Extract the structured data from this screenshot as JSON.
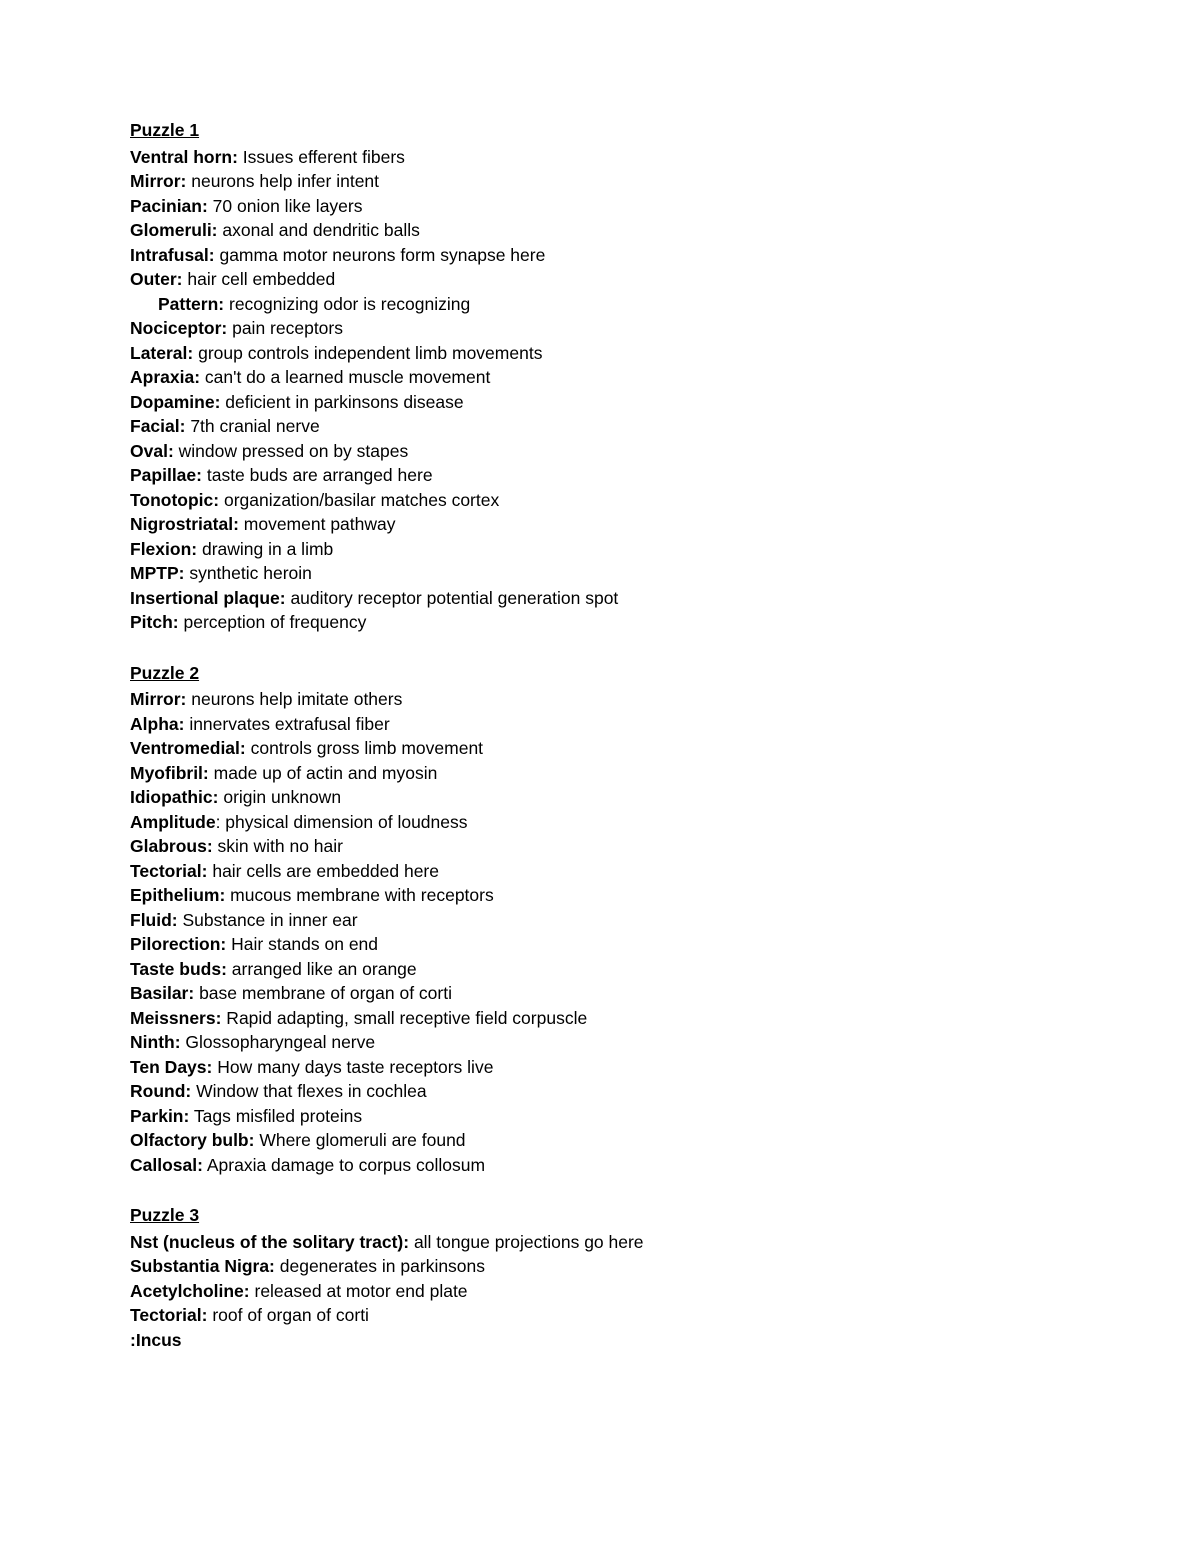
{
  "text_color": "#000000",
  "background_color": "#ffffff",
  "font_family": "Verdana, Geneva, sans-serif",
  "font_size_pt": 13,
  "puzzles": [
    {
      "heading": "Puzzle 1",
      "entries": [
        {
          "term": "Ventral horn:",
          "def": " Issues efferent fibers",
          "indent": false
        },
        {
          "term": "Mirror:",
          "def": " neurons help infer intent",
          "indent": false
        },
        {
          "term": "Pacinian:",
          "def": " 70 onion like layers",
          "indent": false
        },
        {
          "term": "Glomeruli:",
          "def": " axonal and dendritic balls",
          "indent": false
        },
        {
          "term": "Intrafusal:",
          "def": " gamma motor neurons form synapse here",
          "indent": false
        },
        {
          "term": "Outer:",
          "def": " hair cell embedded",
          "indent": false
        },
        {
          "term": "Pattern:",
          "def": " recognizing odor is recognizing",
          "indent": true
        },
        {
          "term": "Nociceptor:",
          "def": " pain receptors",
          "indent": false
        },
        {
          "term": "Lateral:",
          "def": " group controls independent limb movements",
          "indent": false
        },
        {
          "term": "Apraxia:",
          "def": " can't do a learned muscle movement",
          "indent": false
        },
        {
          "term": "Dopamine:",
          "def": " deficient in parkinsons disease",
          "indent": false
        },
        {
          "term": "Facial:",
          "def": " 7th cranial nerve",
          "indent": false
        },
        {
          "term": "Oval:",
          "def": " window pressed on by stapes",
          "indent": false
        },
        {
          "term": "Papillae:",
          "def": " taste buds are arranged here",
          "indent": false
        },
        {
          "term": "Tonotopic:",
          "def": " organization/basilar matches cortex",
          "indent": false
        },
        {
          "term": "Nigrostriatal:",
          "def": " movement pathway",
          "indent": false
        },
        {
          "term": "Flexion:",
          "def": " drawing in a limb",
          "indent": false
        },
        {
          "term": "MPTP:",
          "def": " synthetic heroin",
          "indent": false
        },
        {
          "term": "Insertional plaque:",
          "def": " auditory receptor potential generation spot",
          "indent": false
        },
        {
          "term": "Pitch:",
          "def": " perception of frequency",
          "indent": false
        }
      ]
    },
    {
      "heading": "Puzzle 2",
      "entries": [
        {
          "term": "Mirror:",
          "def": " neurons help imitate others",
          "indent": false
        },
        {
          "term": "Alpha:",
          "def": " innervates extrafusal fiber",
          "indent": false
        },
        {
          "term": "Ventromedial:",
          "def": " controls gross limb movement",
          "indent": false
        },
        {
          "term": "Myofibril:",
          "def": " made up of actin and myosin",
          "indent": false
        },
        {
          "term": "Idiopathic:",
          "def": " origin unknown",
          "indent": false
        },
        {
          "term": "Amplitude",
          "def": ": physical dimension of loudness",
          "indent": false
        },
        {
          "term": "Glabrous:",
          "def": " skin with no hair",
          "indent": false
        },
        {
          "term": "Tectorial:",
          "def": " hair cells are embedded here",
          "indent": false
        },
        {
          "term": "Epithelium:",
          "def": " mucous membrane with receptors",
          "indent": false
        },
        {
          "term": "Fluid:",
          "def": " Substance in inner ear",
          "indent": false
        },
        {
          "term": "Pilorection:",
          "def": " Hair stands on end",
          "indent": false
        },
        {
          "term": "Taste buds:",
          "def": " arranged like an orange",
          "indent": false
        },
        {
          "term": "Basilar:",
          "def": " base membrane of organ of corti",
          "indent": false
        },
        {
          "term": "Meissners:",
          "def": " Rapid adapting, small receptive field corpuscle",
          "indent": false
        },
        {
          "term": "Ninth:",
          "def": " Glossopharyngeal nerve",
          "indent": false
        },
        {
          "term": "Ten Days:",
          "def": " How many days taste receptors live",
          "indent": false
        },
        {
          "term": "Round:",
          "def": " Window that flexes in cochlea",
          "indent": false
        },
        {
          "term": "Parkin:",
          "def": " Tags misfiled proteins",
          "indent": false
        },
        {
          "term": "Olfactory bulb:",
          "def": " Where glomeruli are found",
          "indent": false
        },
        {
          "term": "Callosal:",
          "def": " Apraxia damage to corpus collosum",
          "indent": false
        }
      ]
    },
    {
      "heading": "Puzzle 3",
      "entries": [
        {
          "term": "Nst (nucleus of the solitary tract):",
          "def": " all tongue projections go here",
          "indent": false
        },
        {
          "term": "Substantia Nigra:",
          "def": " degenerates in parkinsons",
          "indent": false
        },
        {
          "term": "Acetylcholine:",
          "def": " released at motor end plate",
          "indent": false
        },
        {
          "term": "Tectorial:",
          "def": " roof of organ of corti",
          "indent": false
        },
        {
          "term": ":Incus",
          "def": "",
          "indent": false
        }
      ]
    }
  ]
}
